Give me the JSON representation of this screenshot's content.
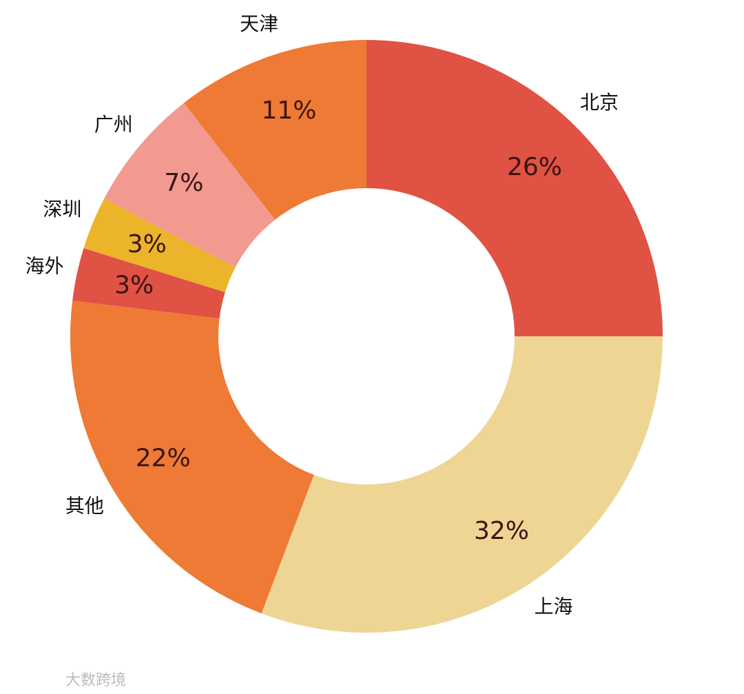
{
  "chart_data": {
    "type": "pie",
    "donut": true,
    "categories": [
      "北京",
      "上海",
      "其他",
      "海外",
      "深圳",
      "广州",
      "天津"
    ],
    "values": [
      26,
      32,
      22,
      3,
      3,
      7,
      11
    ],
    "value_labels": [
      "26%",
      "32%",
      "22%",
      "3%",
      "3%",
      "7%",
      "11%"
    ],
    "colors": [
      "#e05244",
      "#efd594",
      "#ee7a35",
      "#e05244",
      "#ebb42b",
      "#f29a90",
      "#ee7a35"
    ]
  },
  "watermark": "大数跨境"
}
